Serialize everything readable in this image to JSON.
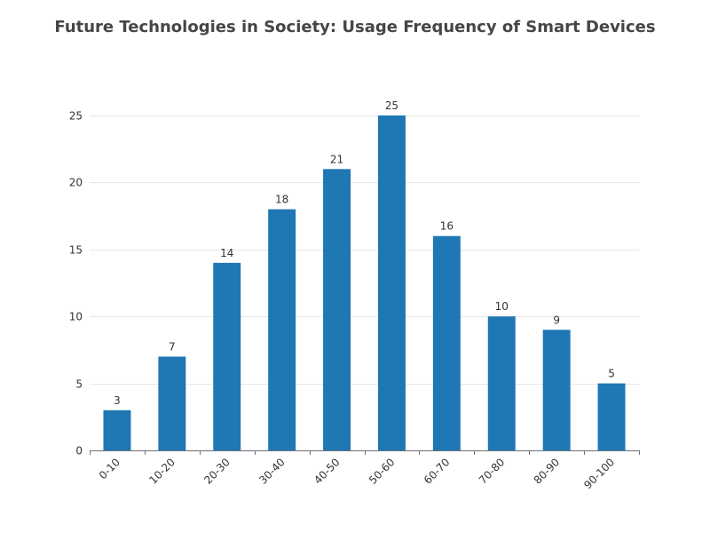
{
  "chart_data": {
    "type": "bar",
    "title": "Future Technologies in Society: Usage Frequency of Smart Devices",
    "xlabel": "",
    "ylabel": "",
    "categories": [
      "0-10",
      "10-20",
      "20-30",
      "30-40",
      "40-50",
      "50-60",
      "60-70",
      "70-80",
      "80-90",
      "90-100"
    ],
    "values": [
      3,
      7,
      14,
      18,
      21,
      25,
      16,
      10,
      9,
      5
    ],
    "ylim": [
      0,
      25
    ],
    "yticks": [
      0,
      5,
      10,
      15,
      20,
      25
    ],
    "grid": true,
    "legend": "none",
    "bar_color": "#1f77b4",
    "data_labels": true
  }
}
